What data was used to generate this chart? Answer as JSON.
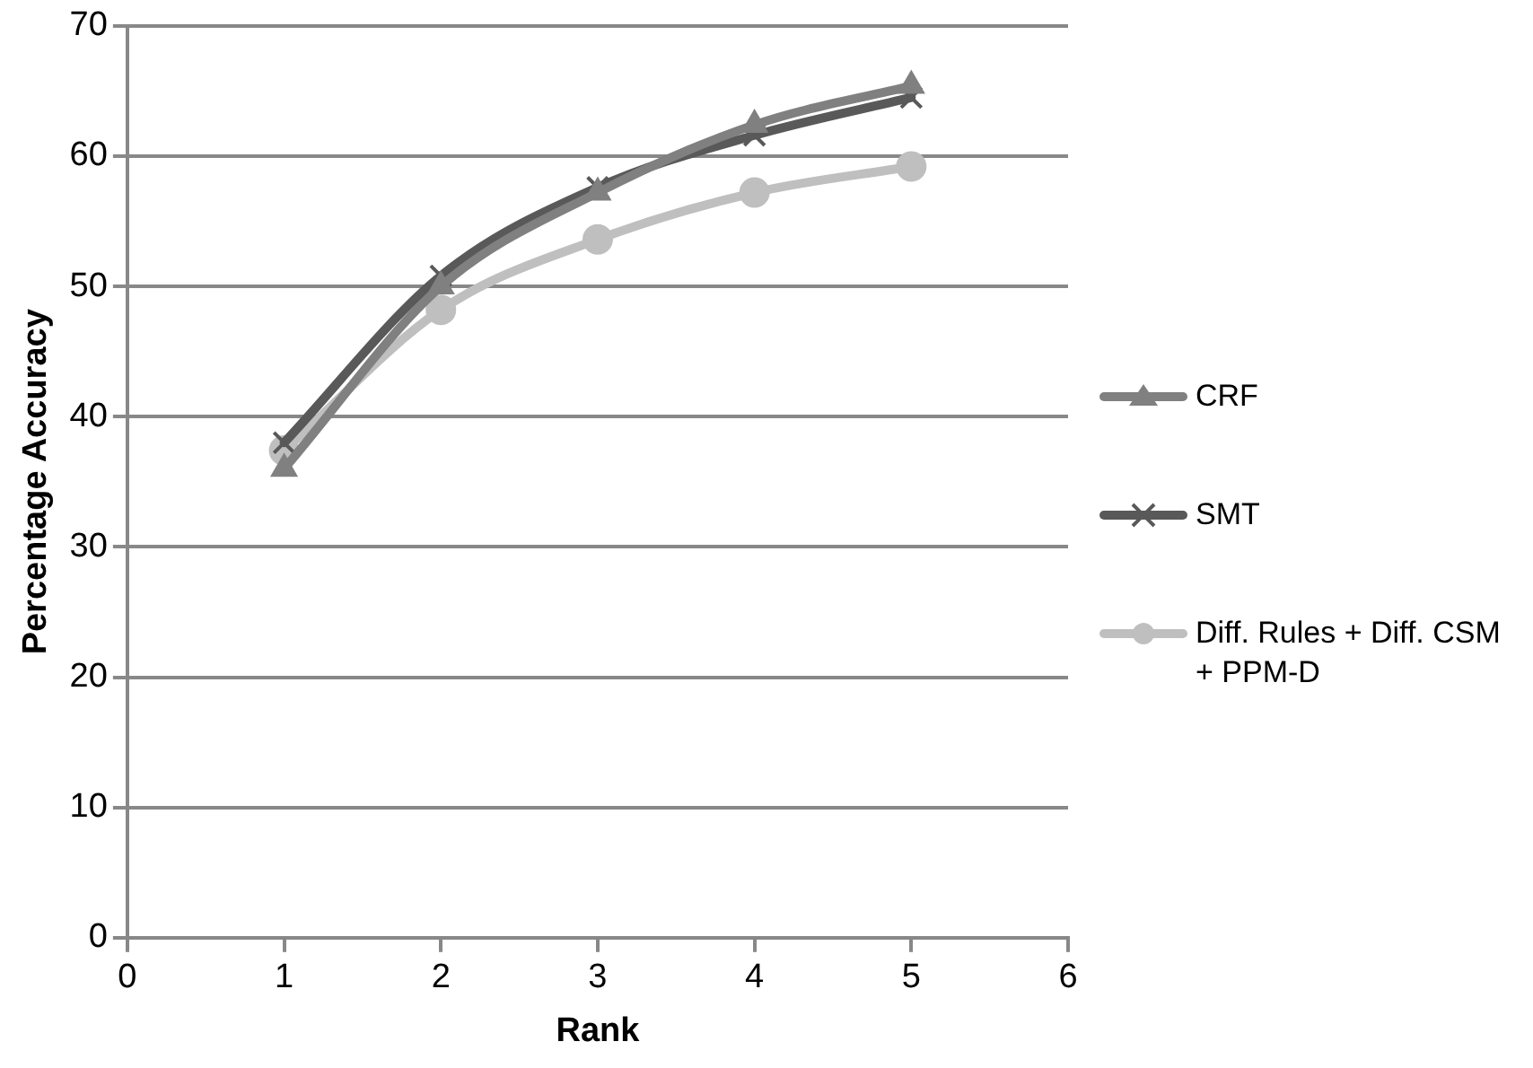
{
  "chart_data": {
    "type": "line",
    "xlabel": "Rank",
    "ylabel": "Percentage Accuracy",
    "x": [
      1,
      2,
      3,
      4,
      5
    ],
    "series": [
      {
        "name": "CRF",
        "color": "#808080",
        "marker": "triangle",
        "values": [
          36,
          50,
          57.2,
          62.4,
          65.4
        ]
      },
      {
        "name": "SMT",
        "color": "#595959",
        "marker": "cross",
        "values": [
          38,
          50.8,
          57.6,
          61.6,
          64.5
        ]
      },
      {
        "name": "Diff. Rules + Diff. CSM + PPM-D",
        "color": "#bfbfbf",
        "marker": "circle",
        "values": [
          37.4,
          48.2,
          53.6,
          57.2,
          59.2
        ]
      }
    ],
    "xlim": [
      0,
      6
    ],
    "xticks": [
      0,
      1,
      2,
      3,
      4,
      5,
      6
    ],
    "ylim": [
      0,
      70
    ],
    "yticks": [
      0,
      10,
      20,
      30,
      40,
      50,
      60,
      70
    ],
    "grid": "y",
    "legend": "right"
  }
}
